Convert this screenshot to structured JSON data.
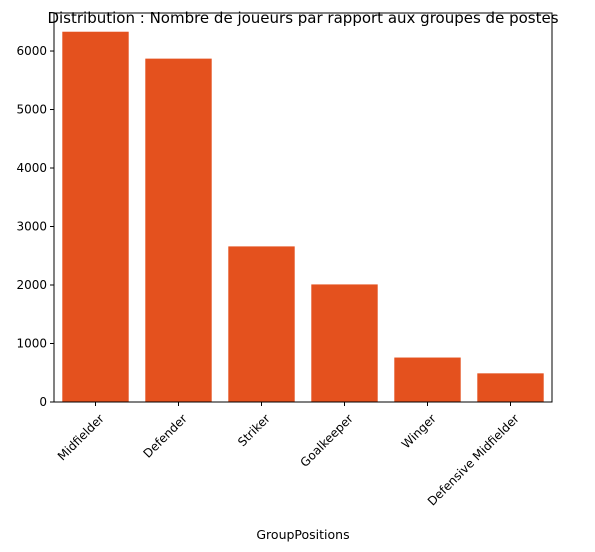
{
  "chart_data": {
    "type": "bar",
    "title": "Distribution : Nombre de joueurs par rapport aux groupes de postes",
    "xlabel": "GroupPositions",
    "ylabel": "",
    "categories": [
      "Midfielder",
      "Defender",
      "Striker",
      "Goalkeeper",
      "Winger",
      "Defensive Midfielder"
    ],
    "values": [
      6330,
      5870,
      2660,
      2010,
      760,
      490
    ],
    "ylim": [
      0,
      6650
    ],
    "yticks": [
      0,
      1000,
      2000,
      3000,
      4000,
      5000,
      6000
    ],
    "ytick_labels": [
      "0",
      "1000",
      "2000",
      "3000",
      "4000",
      "5000",
      "6000"
    ],
    "grid": false,
    "legend": "none",
    "bar_color": "#e4511e"
  }
}
